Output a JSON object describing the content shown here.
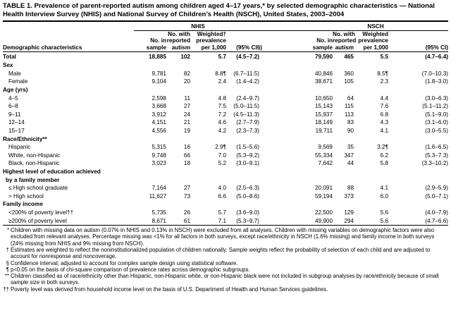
{
  "title": "TABLE 1. Prevalence of parent-reported autism among children aged 4–17 years,* by selected demographic characteristics — National Health Interview Survey (NHIS) and National Survey of Children’s Health (NSCH), United States, 2003–2004",
  "table": {
    "groups": [
      "NHIS",
      "NSCH"
    ],
    "columns": [
      [
        "Demographic characteristics"
      ],
      [
        "No. in",
        "sample"
      ],
      [
        "No. with",
        "reported",
        "autism"
      ],
      [
        "Weighted†",
        "prevalence",
        "per 1,000"
      ],
      [
        "(95% CI§)"
      ],
      [
        "No. in",
        "sample"
      ],
      [
        "No. with",
        "reported",
        "autism"
      ],
      [
        "Weighted",
        "prevalence",
        "per 1,000"
      ],
      [
        "(95% CI)"
      ]
    ],
    "total": {
      "label": "Total",
      "cells": [
        "18,885",
        "102",
        "5.7",
        "(4.5–7.2)",
        "79,590",
        "465",
        "5.5",
        "(4.7–6.4)"
      ]
    },
    "sections": [
      {
        "heading": [
          "Sex"
        ],
        "rows": [
          {
            "label": "Male",
            "cells": [
              "9,781",
              "82",
              "8.8¶",
              "(6.7–11.5)",
              "40,846",
              "360",
              "8.5¶",
              "(7.0–10.3)"
            ]
          },
          {
            "label": "Female",
            "cells": [
              "9,104",
              "20",
              "2.4",
              "(1.4–4.2)",
              "38,671",
              "105",
              "2.3",
              "(1.8–3.0)"
            ]
          }
        ]
      },
      {
        "heading": [
          "Age (yrs)"
        ],
        "rows": [
          {
            "label": "4–5",
            "cells": [
              "2,598",
              "11",
              "4.8",
              "(2.4–9.7)",
              "10,650",
              "64",
              "4.4",
              "(3.0–6.3)"
            ]
          },
          {
            "label": "6–8",
            "cells": [
              "3,668",
              "27",
              "7.5",
              "(5.0–11.5)",
              "15,143",
              "115",
              "7.6",
              "(5.1–11.2)"
            ]
          },
          {
            "label": "9–11",
            "cells": [
              "3,912",
              "24",
              "7.2",
              "(4.5–11.3)",
              "15,937",
              "113",
              "6.8",
              "(5.1–9.0)"
            ]
          },
          {
            "label": "12–14",
            "cells": [
              "4,151",
              "21",
              "4.6",
              "(2.7–7.9)",
              "18,149",
              "83",
              "4.3",
              "(3.1–6.0)"
            ]
          },
          {
            "label": "15–17",
            "cells": [
              "4,556",
              "19",
              "4.2",
              "(2.3–7.3)",
              "19,711",
              "90",
              "4.1",
              "(3.0–5.5)"
            ]
          }
        ]
      },
      {
        "heading": [
          "Race/Ethnicity**"
        ],
        "rows": [
          {
            "label": "Hispanic",
            "cells": [
              "5,315",
              "16",
              "2.9¶",
              "(1.5–5.6)",
              "9,569",
              "35",
              "3.2¶",
              "(1.6–6.5)"
            ]
          },
          {
            "label": "White, non-Hispanic",
            "cells": [
              "9,748",
              "66",
              "7.0",
              "(5.3–9.2)",
              "55,334",
              "347",
              "6.2",
              "(5.3–7.3)"
            ]
          },
          {
            "label": "Black, non-Hispanic",
            "cells": [
              "3,023",
              "18",
              "5.2",
              "(3.0–9.1)",
              "7,642",
              "44",
              "5.8",
              "(3.3–10.2)"
            ]
          }
        ]
      },
      {
        "heading": [
          "Highest level of education achieved",
          "by a family member"
        ],
        "rows": [
          {
            "label": "≤ High school graduate",
            "cells": [
              "7,164",
              "27",
              "4.0",
              "(2.5–6.3)",
              "20,091",
              "88",
              "4.1",
              "(2.9–5.9)"
            ]
          },
          {
            "label": "> High school",
            "cells": [
              "11,627",
              "73",
              "6.6",
              "(5.0–8.6)",
              "59,194",
              "373",
              "6.0",
              "(5.0–7.1)"
            ]
          }
        ]
      },
      {
        "heading": [
          "Family income"
        ],
        "rows": [
          {
            "label": "<200% of poverty level††",
            "cells": [
              "5,735",
              "26",
              "5.7",
              "(3.6–9.0)",
              "22,500",
              "129",
              "5.6",
              "(4.0–7.9)"
            ]
          },
          {
            "label": "≥200% of poverty level",
            "cells": [
              "8,671",
              "61",
              "7.1",
              "(5.3–9.7)",
              "49,900",
              "294",
              "5.6",
              "(4.7–6.6)"
            ]
          }
        ]
      }
    ]
  },
  "footnotes": [
    {
      "mark": "*",
      "text": "Children with missing data on autism (0.07% in NHIS and 0.13% in NSCH) were excluded from all analyses. Children with missing variables on demographic factors were also excluded from relevant analyses. Percentage missing was <1% for all factors in both surveys, except race/ethnicity in NSCH (1.6% missing) and family income in both surveys (24% missing from NHIS and 9% missing from NSCH)."
    },
    {
      "mark": "†",
      "text": "Estimates are weighted to reflect the noninstitutionalized population of children nationally. Sample weights reflect the probability of selection of each child and are adjusted to account for nonresponse and noncoverage."
    },
    {
      "mark": "§",
      "text": "Confidence interval; adjusted to account for complex sample design using statistical software."
    },
    {
      "mark": "¶",
      "text": "p<0.05 on the basis of chi-square comparison of prevalence rates across demographic subgroups."
    },
    {
      "mark": "**",
      "text": "Children classified as of race/ethnicity other than Hispanic, non-Hispanic white, or non-Hispanic black were not included in subgroup analyses by race/ethnicity because of small sample size in both surveys."
    },
    {
      "mark": "††",
      "text": "Poverty level was derived from household income level on the basis of U.S. Department of Health and Human Services guidelines."
    }
  ]
}
